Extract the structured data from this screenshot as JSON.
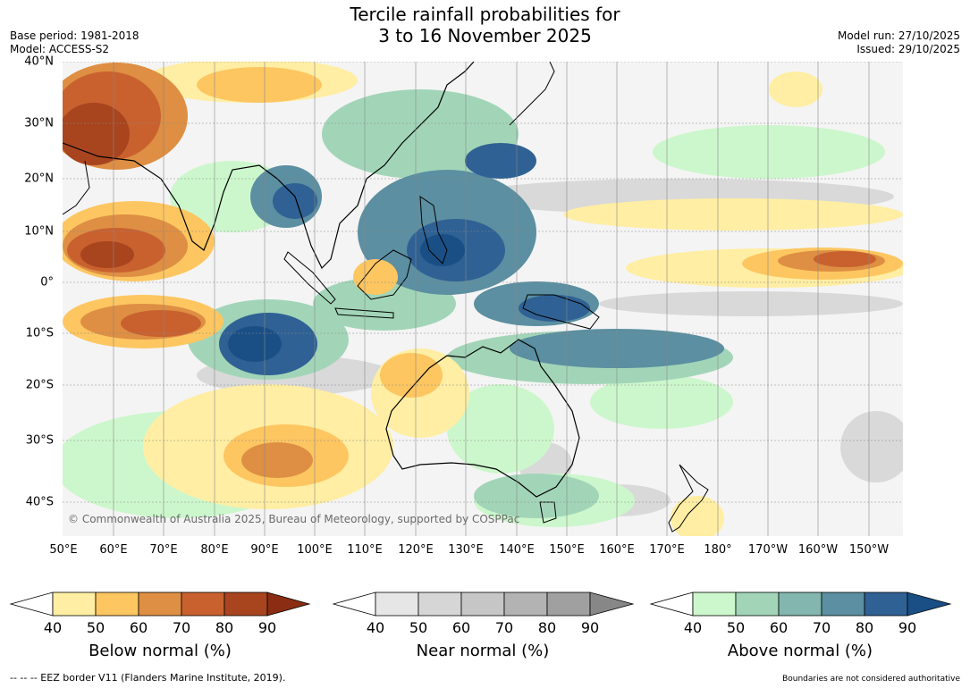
{
  "title_line1": "Tercile rainfall probabilities for",
  "title_line2": "3 to 16 November 2025",
  "base_period": "Base period: 1981-2018",
  "model": "Model: ACCESS-S2",
  "model_run": "Model run: 27/10/2025",
  "issued": "Issued: 29/10/2025",
  "copyright": "© Commonwealth of Australia 2025, Bureau of Meteorology, supported by COSPPac",
  "map": {
    "lat_labels": [
      "40°N",
      "30°N",
      "20°N",
      "10°N",
      "0°",
      "10°S",
      "20°S",
      "30°S",
      "40°S"
    ],
    "lon_labels": [
      "50°E",
      "60°E",
      "70°E",
      "80°E",
      "90°E",
      "100°E",
      "110°E",
      "120°E",
      "130°E",
      "140°E",
      "150°E",
      "160°E",
      "170°E",
      "180°",
      "170°W",
      "160°W",
      "150°W"
    ]
  },
  "colorbars": [
    {
      "title": "Below normal (%)",
      "ticks": [
        "40",
        "50",
        "60",
        "70",
        "80",
        "90"
      ],
      "colors": [
        "#ffeea3",
        "#fdc661",
        "#de8f43",
        "#c9612f",
        "#a8451f",
        "#8a2d12"
      ]
    },
    {
      "title": "Near normal (%)",
      "ticks": [
        "40",
        "50",
        "60",
        "70",
        "80",
        "90"
      ],
      "colors": [
        "#e6e6e6",
        "#d6d6d6",
        "#c6c6c6",
        "#b3b3b3",
        "#a0a0a0",
        "#878787"
      ]
    },
    {
      "title": "Above normal (%)",
      "ticks": [
        "40",
        "50",
        "60",
        "70",
        "80",
        "90"
      ],
      "colors": [
        "#ccf7cc",
        "#a2d5b8",
        "#82b6ae",
        "#5b8fa1",
        "#2f6194",
        "#1a4f86"
      ]
    }
  ],
  "eez_legend": "--  --  -- EEZ border V11 (Flanders Marine Institute, 2019).",
  "boundaries_note": "Boundaries are not considered authoritative"
}
